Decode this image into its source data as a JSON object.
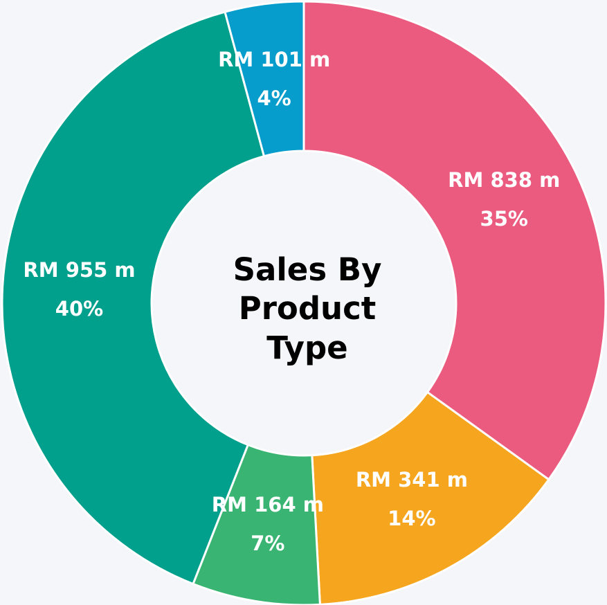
{
  "chart_data": {
    "type": "donut",
    "title": "Sales By Product Type",
    "values": [
      838,
      341,
      164,
      955,
      101
    ],
    "value_labels": [
      "RM 838 m",
      "RM 341 m",
      "RM 164 m",
      "RM 955 m",
      "RM 101 m"
    ],
    "percentages": [
      35,
      14,
      7,
      40,
      4
    ],
    "percentage_labels": [
      "35%",
      "14%",
      "7%",
      "40%",
      "4%"
    ],
    "colors": [
      "#eb5b80",
      "#f6a61e",
      "#3ab472",
      "#00a08c",
      "#069ccb"
    ]
  }
}
